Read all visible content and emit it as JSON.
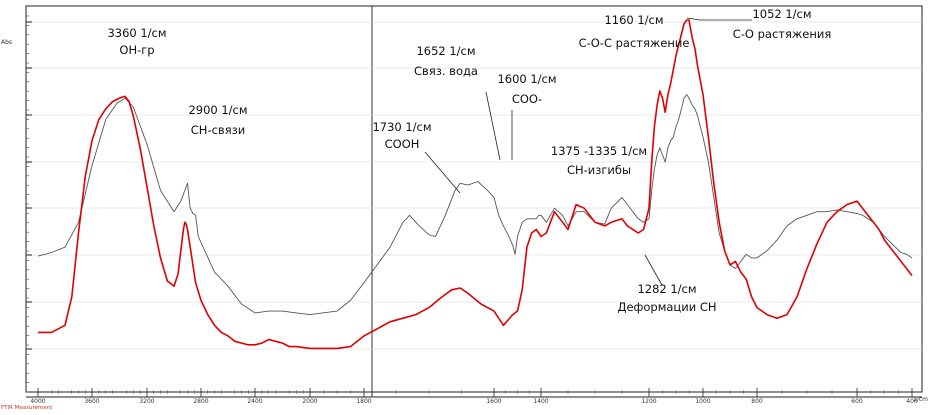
{
  "chart_data": {
    "type": "line",
    "xlabel": "1/cm",
    "ylabel": "Abs",
    "footer": "FTIR Measurement",
    "x_reversed": true,
    "xlim": [
      4000,
      400
    ],
    "ylim": [
      0,
      1
    ],
    "x_ticks": [
      4000,
      3600,
      3200,
      2800,
      2400,
      2000,
      1800,
      1600,
      1400,
      1200,
      1000,
      800,
      600,
      400
    ],
    "series": [
      {
        "color": "#555555",
        "points": [
          [
            4000,
            0.335
          ],
          [
            3900,
            0.345
          ],
          [
            3800,
            0.36
          ],
          [
            3700,
            0.43
          ],
          [
            3600,
            0.59
          ],
          [
            3500,
            0.72
          ],
          [
            3420,
            0.765
          ],
          [
            3360,
            0.78
          ],
          [
            3300,
            0.755
          ],
          [
            3200,
            0.65
          ],
          [
            3100,
            0.52
          ],
          [
            3000,
            0.46
          ],
          [
            2950,
            0.49
          ],
          [
            2920,
            0.52
          ],
          [
            2900,
            0.54
          ],
          [
            2880,
            0.47
          ],
          [
            2860,
            0.455
          ],
          [
            2840,
            0.45
          ],
          [
            2820,
            0.39
          ],
          [
            2700,
            0.29
          ],
          [
            2600,
            0.25
          ],
          [
            2500,
            0.2
          ],
          [
            2400,
            0.175
          ],
          [
            2300,
            0.18
          ],
          [
            2200,
            0.18
          ],
          [
            2100,
            0.175
          ],
          [
            2000,
            0.17
          ],
          [
            1900,
            0.18
          ],
          [
            1850,
            0.21
          ],
          [
            1800,
            0.26
          ],
          [
            1760,
            0.36
          ],
          [
            1740,
            0.43
          ],
          [
            1730,
            0.45
          ],
          [
            1715,
            0.42
          ],
          [
            1700,
            0.395
          ],
          [
            1690,
            0.39
          ],
          [
            1675,
            0.45
          ],
          [
            1660,
            0.52
          ],
          [
            1652,
            0.54
          ],
          [
            1640,
            0.535
          ],
          [
            1625,
            0.545
          ],
          [
            1610,
            0.52
          ],
          [
            1600,
            0.5
          ],
          [
            1580,
            0.45
          ],
          [
            1560,
            0.42
          ],
          [
            1540,
            0.395
          ],
          [
            1520,
            0.365
          ],
          [
            1510,
            0.34
          ],
          [
            1500,
            0.39
          ],
          [
            1480,
            0.43
          ],
          [
            1460,
            0.44
          ],
          [
            1440,
            0.44
          ],
          [
            1420,
            0.44
          ],
          [
            1410,
            0.45
          ],
          [
            1400,
            0.45
          ],
          [
            1390,
            0.43
          ],
          [
            1375,
            0.47
          ],
          [
            1360,
            0.45
          ],
          [
            1350,
            0.42
          ],
          [
            1335,
            0.46
          ],
          [
            1320,
            0.46
          ],
          [
            1300,
            0.43
          ],
          [
            1282,
            0.425
          ],
          [
            1270,
            0.47
          ],
          [
            1250,
            0.5
          ],
          [
            1240,
            0.48
          ],
          [
            1220,
            0.44
          ],
          [
            1210,
            0.43
          ],
          [
            1200,
            0.44
          ],
          [
            1190,
            0.52
          ],
          [
            1180,
            0.58
          ],
          [
            1170,
            0.62
          ],
          [
            1160,
            0.64
          ],
          [
            1150,
            0.62
          ],
          [
            1140,
            0.6
          ],
          [
            1130,
            0.64
          ],
          [
            1120,
            0.66
          ],
          [
            1110,
            0.67
          ],
          [
            1100,
            0.7
          ],
          [
            1090,
            0.72
          ],
          [
            1080,
            0.75
          ],
          [
            1070,
            0.78
          ],
          [
            1060,
            0.79
          ],
          [
            1052,
            0.78
          ],
          [
            1040,
            0.76
          ],
          [
            1030,
            0.75
          ],
          [
            1020,
            0.73
          ],
          [
            1000,
            0.67
          ],
          [
            980,
            0.6
          ],
          [
            960,
            0.5
          ],
          [
            940,
            0.4
          ],
          [
            920,
            0.35
          ],
          [
            900,
            0.31
          ],
          [
            880,
            0.3
          ],
          [
            860,
            0.32
          ],
          [
            840,
            0.34
          ],
          [
            820,
            0.33
          ],
          [
            800,
            0.33
          ],
          [
            780,
            0.35
          ],
          [
            760,
            0.38
          ],
          [
            740,
            0.42
          ],
          [
            720,
            0.44
          ],
          [
            700,
            0.45
          ],
          [
            680,
            0.46
          ],
          [
            660,
            0.46
          ],
          [
            640,
            0.465
          ],
          [
            620,
            0.46
          ],
          [
            600,
            0.455
          ],
          [
            580,
            0.45
          ],
          [
            560,
            0.44
          ],
          [
            540,
            0.43
          ],
          [
            520,
            0.41
          ],
          [
            500,
            0.39
          ],
          [
            480,
            0.375
          ],
          [
            460,
            0.36
          ],
          [
            440,
            0.345
          ],
          [
            420,
            0.34
          ],
          [
            400,
            0.33
          ]
        ]
      },
      {
        "color": "#e00000",
        "points": [
          [
            4000,
            0.12
          ],
          [
            3900,
            0.12
          ],
          [
            3800,
            0.14
          ],
          [
            3750,
            0.22
          ],
          [
            3700,
            0.4
          ],
          [
            3650,
            0.56
          ],
          [
            3600,
            0.66
          ],
          [
            3550,
            0.72
          ],
          [
            3500,
            0.75
          ],
          [
            3450,
            0.77
          ],
          [
            3400,
            0.78
          ],
          [
            3360,
            0.785
          ],
          [
            3330,
            0.77
          ],
          [
            3300,
            0.73
          ],
          [
            3250,
            0.64
          ],
          [
            3200,
            0.53
          ],
          [
            3150,
            0.42
          ],
          [
            3100,
            0.33
          ],
          [
            3050,
            0.265
          ],
          [
            3000,
            0.25
          ],
          [
            2970,
            0.285
          ],
          [
            2950,
            0.35
          ],
          [
            2930,
            0.41
          ],
          [
            2920,
            0.43
          ],
          [
            2910,
            0.425
          ],
          [
            2900,
            0.41
          ],
          [
            2880,
            0.36
          ],
          [
            2860,
            0.31
          ],
          [
            2840,
            0.26
          ],
          [
            2800,
            0.21
          ],
          [
            2750,
            0.17
          ],
          [
            2700,
            0.14
          ],
          [
            2650,
            0.12
          ],
          [
            2600,
            0.11
          ],
          [
            2550,
            0.095
          ],
          [
            2500,
            0.09
          ],
          [
            2450,
            0.085
          ],
          [
            2400,
            0.085
          ],
          [
            2350,
            0.09
          ],
          [
            2300,
            0.1
          ],
          [
            2250,
            0.095
          ],
          [
            2200,
            0.09
          ],
          [
            2150,
            0.08
          ],
          [
            2100,
            0.08
          ],
          [
            2000,
            0.075
          ],
          [
            1900,
            0.075
          ],
          [
            1850,
            0.08
          ],
          [
            1800,
            0.11
          ],
          [
            1780,
            0.13
          ],
          [
            1760,
            0.15
          ],
          [
            1740,
            0.16
          ],
          [
            1720,
            0.17
          ],
          [
            1700,
            0.19
          ],
          [
            1680,
            0.22
          ],
          [
            1665,
            0.24
          ],
          [
            1652,
            0.245
          ],
          [
            1640,
            0.23
          ],
          [
            1620,
            0.2
          ],
          [
            1600,
            0.18
          ],
          [
            1580,
            0.16
          ],
          [
            1560,
            0.14
          ],
          [
            1540,
            0.155
          ],
          [
            1520,
            0.17
          ],
          [
            1500,
            0.18
          ],
          [
            1480,
            0.24
          ],
          [
            1460,
            0.36
          ],
          [
            1440,
            0.4
          ],
          [
            1420,
            0.41
          ],
          [
            1400,
            0.39
          ],
          [
            1390,
            0.4
          ],
          [
            1375,
            0.46
          ],
          [
            1360,
            0.43
          ],
          [
            1350,
            0.41
          ],
          [
            1335,
            0.48
          ],
          [
            1320,
            0.47
          ],
          [
            1300,
            0.43
          ],
          [
            1282,
            0.42
          ],
          [
            1270,
            0.43
          ],
          [
            1250,
            0.44
          ],
          [
            1240,
            0.42
          ],
          [
            1220,
            0.4
          ],
          [
            1210,
            0.41
          ],
          [
            1200,
            0.47
          ],
          [
            1190,
            0.6
          ],
          [
            1180,
            0.7
          ],
          [
            1170,
            0.76
          ],
          [
            1160,
            0.8
          ],
          [
            1150,
            0.78
          ],
          [
            1140,
            0.74
          ],
          [
            1130,
            0.79
          ],
          [
            1120,
            0.82
          ],
          [
            1110,
            0.86
          ],
          [
            1100,
            0.9
          ],
          [
            1090,
            0.93
          ],
          [
            1080,
            0.96
          ],
          [
            1070,
            0.99
          ],
          [
            1060,
            1.0
          ],
          [
            1052,
            1.0
          ],
          [
            1040,
            0.95
          ],
          [
            1030,
            0.92
          ],
          [
            1020,
            0.87
          ],
          [
            1000,
            0.79
          ],
          [
            980,
            0.67
          ],
          [
            960,
            0.54
          ],
          [
            940,
            0.43
          ],
          [
            920,
            0.35
          ],
          [
            900,
            0.31
          ],
          [
            880,
            0.32
          ],
          [
            860,
            0.29
          ],
          [
            840,
            0.27
          ],
          [
            820,
            0.22
          ],
          [
            800,
            0.19
          ],
          [
            780,
            0.17
          ],
          [
            760,
            0.16
          ],
          [
            740,
            0.17
          ],
          [
            720,
            0.22
          ],
          [
            700,
            0.3
          ],
          [
            680,
            0.37
          ],
          [
            660,
            0.43
          ],
          [
            640,
            0.46
          ],
          [
            620,
            0.48
          ],
          [
            600,
            0.49
          ],
          [
            580,
            0.47
          ],
          [
            560,
            0.45
          ],
          [
            540,
            0.43
          ],
          [
            520,
            0.41
          ],
          [
            500,
            0.38
          ],
          [
            480,
            0.36
          ],
          [
            460,
            0.34
          ],
          [
            440,
            0.32
          ],
          [
            420,
            0.3
          ],
          [
            400,
            0.28
          ]
        ]
      }
    ],
    "annotations": [
      {
        "lines": [
          "3360 1/см",
          "ОН-гр"
        ],
        "x": 3360
      },
      {
        "lines": [
          "2900 1/см",
          "СН-связи"
        ],
        "x": 2900
      },
      {
        "lines": [
          "1730 1/см",
          "СООН"
        ],
        "x": 1730
      },
      {
        "lines": [
          "1652 1/см",
          "Связ. вода"
        ],
        "x": 1652
      },
      {
        "lines": [
          "1600 1/см",
          "СОО-"
        ],
        "x": 1600
      },
      {
        "lines": [
          "1375 -1335 1/см",
          "СН-изгибы"
        ],
        "x": 1375
      },
      {
        "lines": [
          "1160 1/см",
          "С-О-С растяжение"
        ],
        "x": 1160
      },
      {
        "lines": [
          "1052 1/см",
          "С-О растяжения"
        ],
        "x": 1052
      },
      {
        "lines": [
          "1282 1/см",
          "Деформации СН"
        ],
        "x": 1282
      }
    ]
  }
}
